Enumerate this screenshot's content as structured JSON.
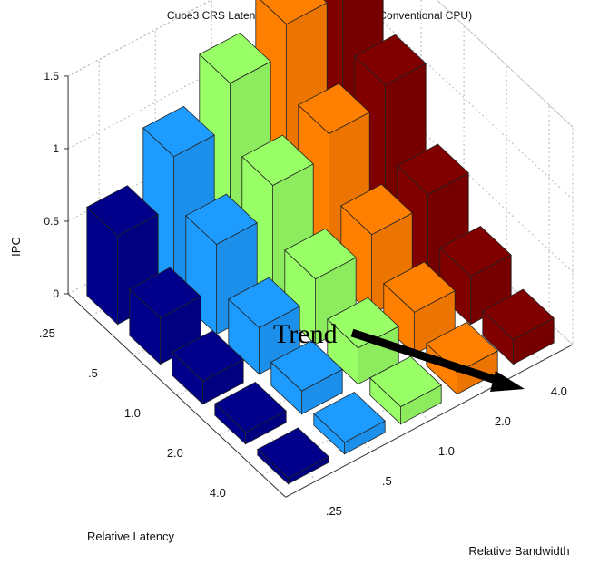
{
  "chart_data": {
    "type": "bar3d",
    "title": "Cube3 CRS Latency/Bandwidth Sensitivity (Conventional CPU)",
    "zlabel": "IPC",
    "xlabel": "Relative Bandwidth",
    "ylabel": "Relative Latency",
    "zlim": [
      0,
      1.5
    ],
    "zticks": [
      "0",
      "0.5",
      "1",
      "1.5"
    ],
    "grid": true,
    "latency_ticks": [
      ".25",
      ".5",
      "1.0",
      "2.0",
      "4.0"
    ],
    "bandwidth_ticks": [
      ".25",
      ".5",
      "1.0",
      "2.0",
      "4.0"
    ],
    "series": [
      {
        "bandwidth": ".25",
        "color": "#00008b",
        "values": [
          0.61,
          0.32,
          0.16,
          0.08,
          0.04
        ]
      },
      {
        "bandwidth": ".5",
        "color": "#1e9bff",
        "values": [
          0.95,
          0.62,
          0.32,
          0.16,
          0.08
        ]
      },
      {
        "bandwidth": "1.0",
        "color": "#99ff66",
        "values": [
          1.25,
          0.82,
          0.45,
          0.25,
          0.12
        ]
      },
      {
        "bandwidth": "2.0",
        "color": "#ff7f00",
        "values": [
          1.45,
          0.97,
          0.55,
          0.29,
          0.15
        ]
      },
      {
        "bandwidth": "4.0",
        "color": "#800000",
        "values": [
          1.58,
          1.1,
          0.62,
          0.33,
          0.17
        ]
      }
    ],
    "annotation": "Trend"
  }
}
